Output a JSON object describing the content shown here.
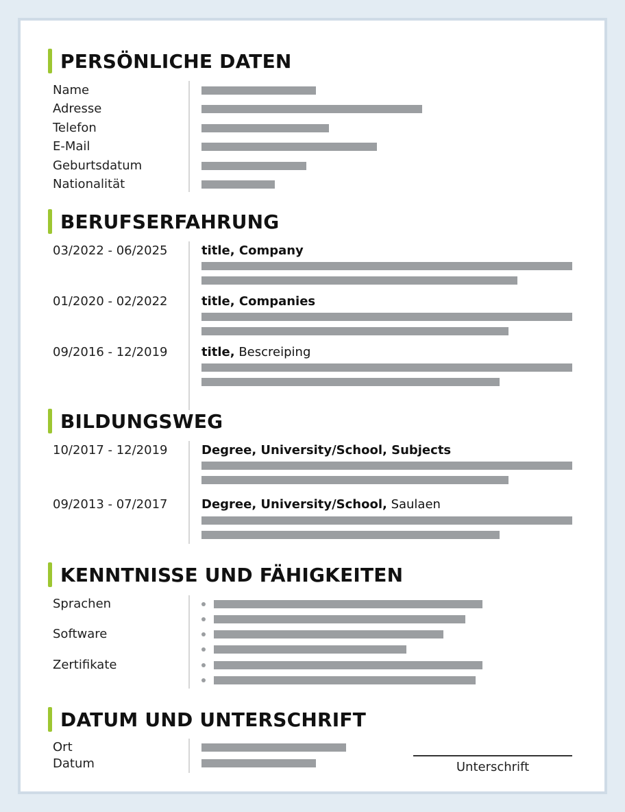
{
  "sections": {
    "personal": {
      "heading": "PERSÖNLICHE DATEN",
      "fields": [
        {
          "label": "Name",
          "fill": 0.31
        },
        {
          "label": "Adresse",
          "fill": 0.6
        },
        {
          "label": "Telefon",
          "fill": 0.35
        },
        {
          "label": "E-Mail",
          "fill": 0.48
        },
        {
          "label": "Geburtsdatum",
          "fill": 0.285
        },
        {
          "label": "Nationalität",
          "fill": 0.2
        }
      ]
    },
    "experience": {
      "heading": "BERUFSERFAHRUNG",
      "entries": [
        {
          "date": "03/2022 - 06/2025",
          "title_bold": "title, Company",
          "title_rest": ""
        },
        {
          "date": "01/2020 - 02/2022",
          "title_bold": "title, Companies",
          "title_rest": ""
        },
        {
          "date": "09/2016 - 12/2019",
          "title_bold": "title,",
          "title_rest": " Bescreiping"
        }
      ]
    },
    "education": {
      "heading": "BILDUNGSWEG",
      "entries": [
        {
          "date": "10/2017 - 12/2019",
          "title_bold": "Degree, University/School, Subjects",
          "title_rest": ""
        },
        {
          "date": "09/2013 - 07/2017",
          "title_bold": "Degree, University/School,",
          "title_rest": " Saulaen"
        }
      ]
    },
    "skills": {
      "heading": "KENNTNISSE UND FÄHIGKEITEN",
      "labels": [
        "Sprachen",
        "Software",
        "Zertifikate"
      ]
    },
    "signature": {
      "heading": "DATUM UND UNTERSCHRIFT",
      "labels": [
        "Ort",
        "Datum"
      ],
      "signature_label": "Unterschrift"
    }
  },
  "colors": {
    "accent": "#9dc631",
    "placeholder_bar": "#9b9ea1",
    "page_background": "#e3ecf3"
  }
}
